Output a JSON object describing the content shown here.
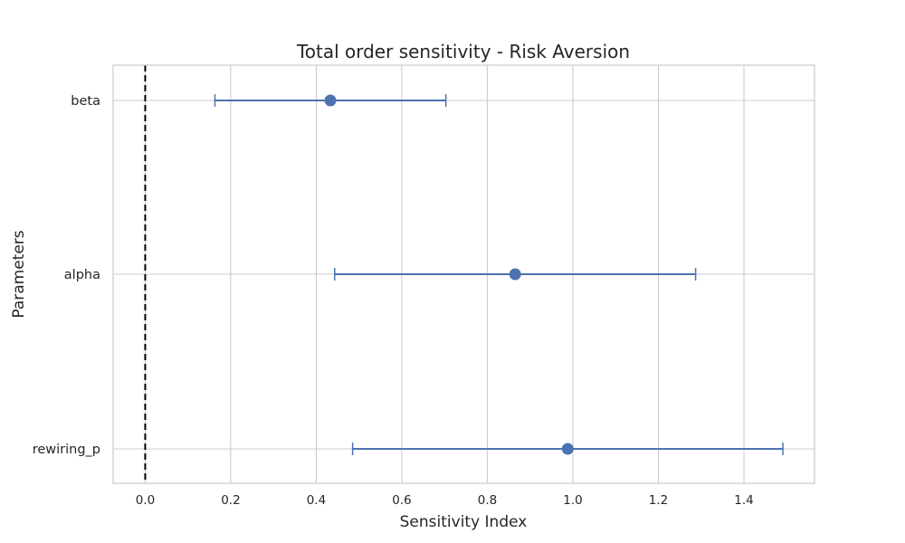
{
  "chart_data": {
    "type": "scatter",
    "title": "Total order sensitivity - Risk Aversion",
    "xlabel": "Sensitivity Index",
    "ylabel": "Parameters",
    "xlim": [
      -0.075,
      1.565
    ],
    "xticks": [
      0.0,
      0.2,
      0.4,
      0.6,
      0.8,
      1.0,
      1.2,
      1.4
    ],
    "xtick_labels": [
      "0.0",
      "0.2",
      "0.4",
      "0.6",
      "0.8",
      "1.0",
      "1.2",
      "1.4"
    ],
    "categories": [
      "beta",
      "alpha",
      "rewiring_p"
    ],
    "series": [
      {
        "values": [
          0.433,
          0.865,
          0.988
        ],
        "error_low": [
          0.163,
          0.443,
          0.485
        ],
        "error_high": [
          0.703,
          1.287,
          1.491
        ]
      }
    ],
    "reference_line": {
      "x": 0.0,
      "style": "dashed"
    },
    "grid": true,
    "colors": {
      "series": "#4c72b0",
      "grid": "#cccccc",
      "reference": "#000000",
      "frame": "#cccccc"
    }
  }
}
